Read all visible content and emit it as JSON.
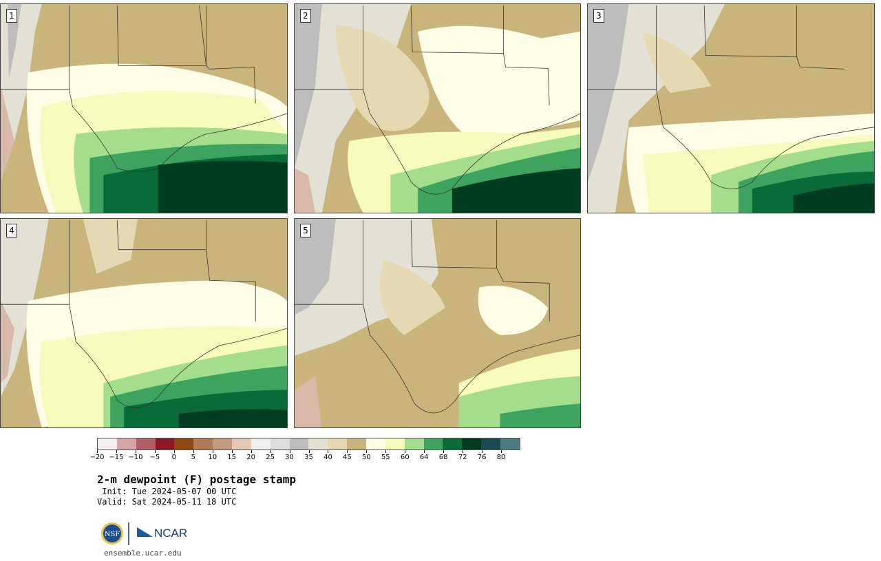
{
  "title": "2-m dewpoint (F) postage stamp",
  "init": " Init: Tue 2024-05-07 00 UTC",
  "valid": "Valid: Sat 2024-05-11 18 UTC",
  "url": "ensemble.ucar.edu",
  "logos": {
    "nsf": "NSF",
    "ncar": "NCAR"
  },
  "panels": [
    {
      "label": "1"
    },
    {
      "label": "2"
    },
    {
      "label": "3"
    },
    {
      "label": "4"
    },
    {
      "label": "5"
    }
  ],
  "colorbar": {
    "colors": [
      "#f4eeee",
      "#d7a4a8",
      "#b15e66",
      "#8c1a24",
      "#8c4a12",
      "#b07a55",
      "#c79b80",
      "#e4c7b5",
      "#efefef",
      "#dddddd",
      "#bdbdbd",
      "#e3e0d4",
      "#e6d8b2",
      "#c9b47c",
      "#fffee6",
      "#f7fbbd",
      "#a4dd8c",
      "#3ea35e",
      "#096b37",
      "#003b1f",
      "#1a4b53",
      "#4c7b80"
    ],
    "ticks": [
      "−20",
      "−15",
      "−10",
      "−5",
      "0",
      "5",
      "10",
      "15",
      "20",
      "25",
      "30",
      "35",
      "40",
      "45",
      "50",
      "55",
      "60",
      "64",
      "68",
      "72",
      "76",
      "80"
    ]
  },
  "map_colors": {
    "tan": "#c9b47c",
    "light_tan": "#e6d8b2",
    "gray_light": "#e3e0d4",
    "gray": "#bdbdbd",
    "brown_light": "#d9b9a8",
    "cream": "#fffee6",
    "pale_yellow": "#f7fbbd",
    "light_green": "#a4dd8c",
    "green": "#3ea35e",
    "dark_green": "#096b37",
    "darkest_green": "#003b1f"
  }
}
